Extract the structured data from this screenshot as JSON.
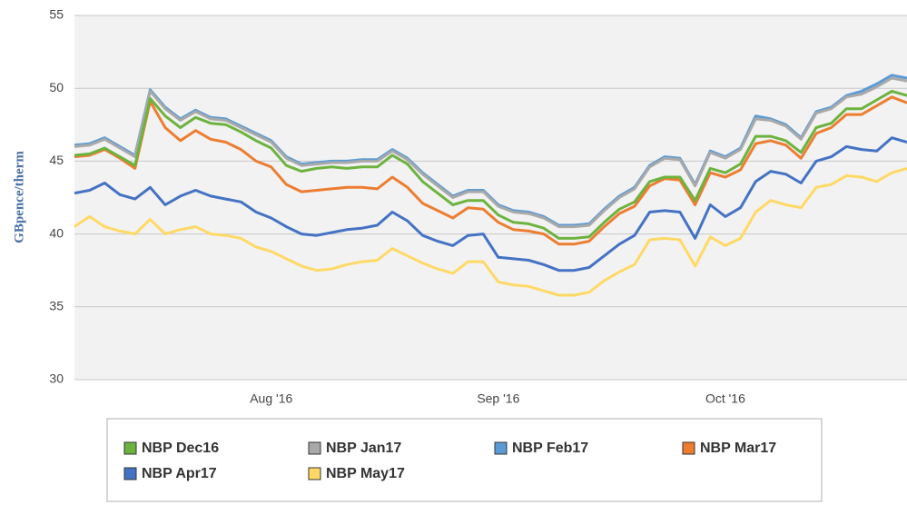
{
  "chart_data": {
    "type": "line",
    "y_label": "GBpence/therm",
    "categories": [
      null,
      null,
      null,
      null,
      null,
      null,
      null,
      null,
      null,
      null,
      null,
      null,
      null,
      "Aug '16",
      null,
      null,
      null,
      null,
      null,
      null,
      null,
      null,
      null,
      null,
      null,
      null,
      null,
      null,
      "Sep '16",
      null,
      null,
      null,
      null,
      null,
      null,
      null,
      null,
      null,
      null,
      null,
      null,
      null,
      null,
      "Oct '16",
      null,
      null,
      null,
      null,
      null,
      null,
      null,
      null,
      null,
      null,
      null,
      null
    ],
    "ylim": [
      30,
      55
    ],
    "yticks": [
      30,
      35,
      40,
      45,
      50,
      55
    ],
    "grid": true,
    "legend": "bottom",
    "series": [
      {
        "name": "NBP Dec16",
        "color": "#6db33f",
        "values": [
          45.4,
          45.5,
          45.9,
          45.3,
          44.7,
          49.3,
          48.1,
          47.3,
          48.0,
          47.6,
          47.5,
          47.0,
          46.4,
          45.9,
          44.7,
          44.3,
          44.5,
          44.6,
          44.5,
          44.6,
          44.6,
          45.4,
          44.8,
          43.6,
          42.8,
          42.0,
          42.3,
          42.3,
          41.3,
          40.8,
          40.7,
          40.4,
          39.7,
          39.7,
          39.8,
          40.8,
          41.7,
          42.2,
          43.6,
          43.9,
          43.9,
          42.3,
          44.5,
          44.2,
          44.8,
          46.7,
          46.7,
          46.4,
          45.6,
          47.3,
          47.6,
          48.6,
          48.6,
          49.2,
          49.8,
          49.5
        ]
      },
      {
        "name": "NBP Jan17",
        "color": "#a9a9a9",
        "values": [
          46.0,
          46.1,
          46.5,
          45.9,
          45.3,
          49.8,
          48.6,
          47.8,
          48.4,
          47.9,
          47.8,
          47.3,
          46.8,
          46.3,
          45.2,
          44.7,
          44.8,
          44.9,
          44.9,
          45.0,
          45.0,
          45.7,
          45.1,
          44.1,
          43.3,
          42.5,
          42.9,
          42.9,
          41.9,
          41.5,
          41.4,
          41.1,
          40.5,
          40.5,
          40.6,
          41.6,
          42.5,
          43.1,
          44.6,
          45.2,
          45.1,
          43.3,
          45.6,
          45.2,
          45.8,
          47.9,
          47.8,
          47.4,
          46.5,
          48.3,
          48.6,
          49.4,
          49.6,
          50.1,
          50.7,
          50.5
        ]
      },
      {
        "name": "NBP Feb17",
        "color": "#5b9bd5",
        "values": [
          46.1,
          46.2,
          46.6,
          46.0,
          45.4,
          49.9,
          48.7,
          47.9,
          48.5,
          48.0,
          47.9,
          47.4,
          46.9,
          46.4,
          45.3,
          44.8,
          44.9,
          45.0,
          45.0,
          45.1,
          45.1,
          45.8,
          45.2,
          44.2,
          43.4,
          42.6,
          43.0,
          43.0,
          42.0,
          41.6,
          41.5,
          41.2,
          40.6,
          40.6,
          40.7,
          41.7,
          42.6,
          43.2,
          44.7,
          45.3,
          45.2,
          43.4,
          45.7,
          45.3,
          45.9,
          48.1,
          47.9,
          47.5,
          46.6,
          48.4,
          48.7,
          49.5,
          49.8,
          50.3,
          50.9,
          50.7
        ]
      },
      {
        "name": "NBP Mar17",
        "color": "#ed7d31",
        "values": [
          45.3,
          45.4,
          45.8,
          45.2,
          44.5,
          49.1,
          47.3,
          46.4,
          47.1,
          46.5,
          46.3,
          45.8,
          45.0,
          44.6,
          43.4,
          42.9,
          43.0,
          43.1,
          43.2,
          43.2,
          43.1,
          43.9,
          43.2,
          42.1,
          41.6,
          41.1,
          41.8,
          41.7,
          40.8,
          40.3,
          40.2,
          40.0,
          39.3,
          39.3,
          39.5,
          40.5,
          41.4,
          41.9,
          43.3,
          43.8,
          43.7,
          42.0,
          44.2,
          43.9,
          44.4,
          46.2,
          46.4,
          46.1,
          45.2,
          46.9,
          47.3,
          48.2,
          48.2,
          48.8,
          49.4,
          49.0
        ]
      },
      {
        "name": "NBP Apr17",
        "color": "#4472c4",
        "values": [
          42.8,
          43.0,
          43.5,
          42.7,
          42.4,
          43.2,
          42.0,
          42.6,
          43.0,
          42.6,
          42.4,
          42.2,
          41.5,
          41.1,
          40.5,
          40.0,
          39.9,
          40.1,
          40.3,
          40.4,
          40.6,
          41.5,
          40.9,
          39.9,
          39.5,
          39.2,
          39.9,
          40.0,
          38.4,
          38.3,
          38.2,
          37.9,
          37.5,
          37.5,
          37.7,
          38.5,
          39.3,
          39.9,
          41.5,
          41.6,
          41.5,
          39.7,
          42.0,
          41.2,
          41.8,
          43.6,
          44.3,
          44.1,
          43.5,
          45.0,
          45.3,
          46.0,
          45.8,
          45.7,
          46.6,
          46.3
        ]
      },
      {
        "name": "NBP May17",
        "color": "#ffd966",
        "values": [
          40.5,
          41.2,
          40.5,
          40.2,
          40.0,
          41.0,
          40.0,
          40.3,
          40.5,
          40.0,
          39.9,
          39.7,
          39.1,
          38.8,
          38.3,
          37.8,
          37.5,
          37.6,
          37.9,
          38.1,
          38.2,
          39.0,
          38.5,
          38.0,
          37.6,
          37.3,
          38.1,
          38.1,
          36.7,
          36.5,
          36.4,
          36.1,
          35.8,
          35.8,
          36.0,
          36.8,
          37.4,
          37.9,
          39.6,
          39.7,
          39.6,
          37.8,
          39.8,
          39.2,
          39.7,
          41.5,
          42.3,
          42.0,
          41.8,
          43.2,
          43.4,
          44.0,
          43.9,
          43.6,
          44.2,
          44.5
        ]
      }
    ]
  }
}
